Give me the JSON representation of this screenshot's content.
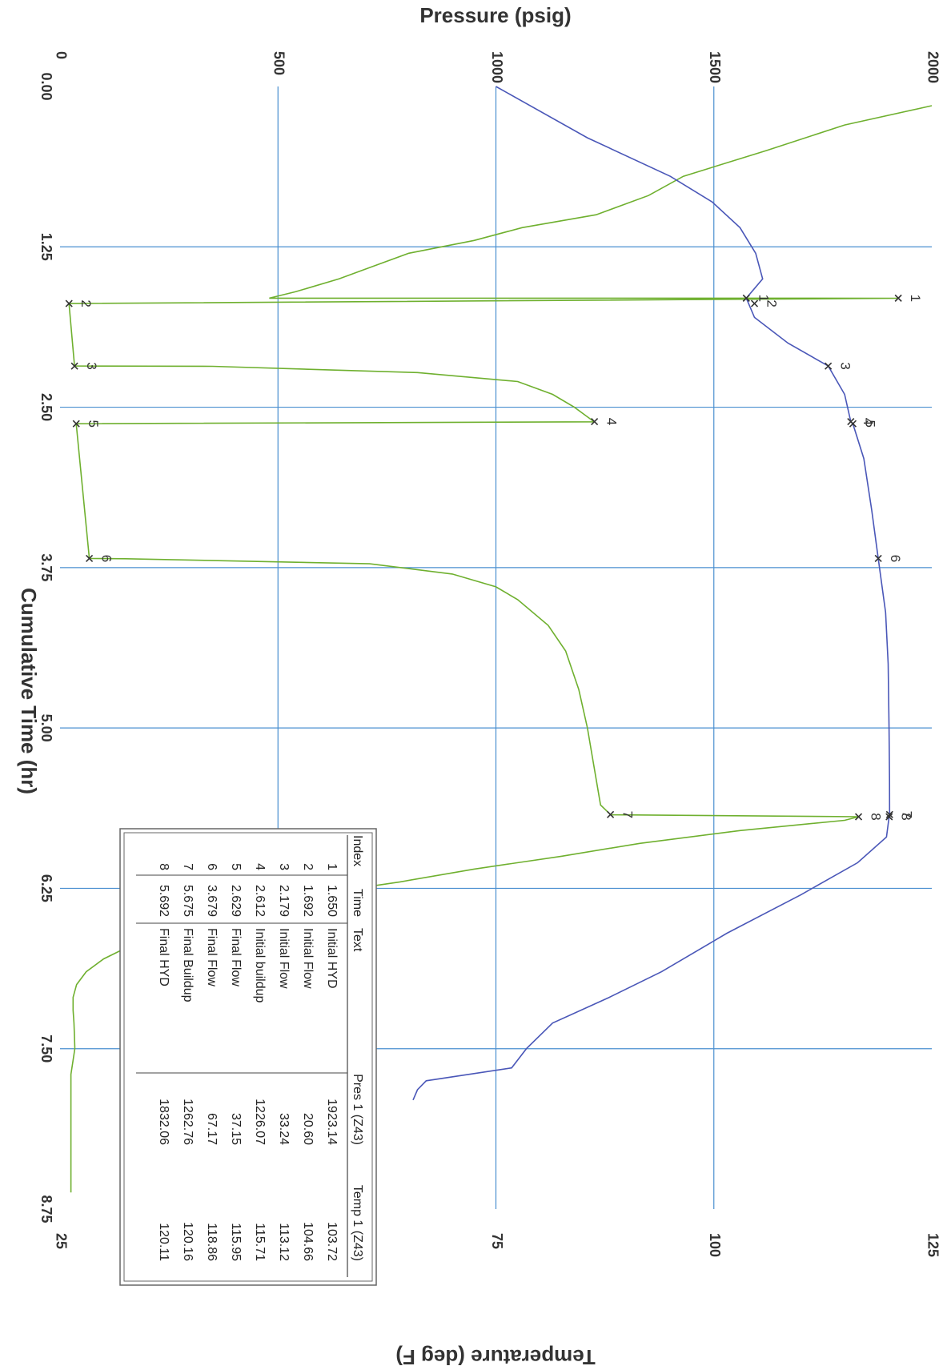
{
  "chart_data": {
    "type": "line",
    "orientation": "rotated-90-clockwise",
    "x_axis": {
      "label": "Cumulative Time (hr)",
      "range": [
        0,
        8.75
      ],
      "ticks": [
        "0.00",
        "1.25",
        "2.50",
        "3.75",
        "5.00",
        "6.25",
        "7.50",
        "8.75"
      ]
    },
    "y_left": {
      "label": "Pressure (psig)",
      "range": [
        0,
        2000
      ],
      "ticks": [
        "0",
        "500",
        "1000",
        "1500",
        "2000"
      ]
    },
    "y_right": {
      "label": "Temperature (deg F)",
      "range": [
        25,
        125
      ],
      "ticks": [
        "25",
        "50",
        "75",
        "100",
        "125"
      ]
    },
    "grid": true,
    "colors": {
      "pressure": "#6fb02f",
      "temperature": "#4a57b8",
      "grid": "#4a8fd0"
    },
    "series": [
      {
        "name": "Pres 1 (Z43)",
        "axis": "pressure",
        "x": [
          0.15,
          0.3,
          0.5,
          0.7,
          0.85,
          1.0,
          1.1,
          1.2,
          1.3,
          1.4,
          1.5,
          1.6,
          1.65,
          1.651,
          1.692,
          2.179,
          2.181,
          2.23,
          2.3,
          2.4,
          2.5,
          2.6,
          2.612,
          2.614,
          2.629,
          3.679,
          3.681,
          3.72,
          3.8,
          3.9,
          4.0,
          4.2,
          4.4,
          4.7,
          5.0,
          5.3,
          5.6,
          5.675,
          5.677,
          5.692,
          5.72,
          5.8,
          5.9,
          6.0,
          6.1,
          6.2,
          6.3,
          6.4,
          6.5,
          6.6,
          6.7,
          6.8,
          6.9,
          7.0,
          7.1,
          7.2,
          7.3,
          7.4,
          7.5,
          7.7,
          8.0,
          8.2,
          8.5,
          8.62
        ],
        "y": [
          2000,
          1800,
          1620,
          1430,
          1350,
          1230,
          1060,
          950,
          800,
          720,
          640,
          540,
          480,
          1923,
          20.6,
          33.24,
          350,
          820,
          1050,
          1130,
          1180,
          1220,
          1226.07,
          1226,
          37.15,
          67.17,
          150,
          710,
          900,
          1000,
          1050,
          1120,
          1160,
          1190,
          1210,
          1225,
          1240,
          1262.76,
          1262.76,
          1832.06,
          1800,
          1560,
          1330,
          1150,
          950,
          780,
          580,
          450,
          340,
          240,
          160,
          100,
          60,
          38,
          30,
          30,
          32,
          33,
          34,
          25,
          25,
          25,
          25,
          25
        ]
      },
      {
        "name": "Temp 1 (Z43)",
        "axis": "temperature",
        "x": [
          0.0,
          0.4,
          0.7,
          0.9,
          1.1,
          1.3,
          1.5,
          1.65,
          1.8,
          2.0,
          2.179,
          2.4,
          2.612,
          2.629,
          2.9,
          3.3,
          3.679,
          4.1,
          4.5,
          5.0,
          5.4,
          5.675,
          5.692,
          5.85,
          6.05,
          6.3,
          6.6,
          6.9,
          7.1,
          7.3,
          7.5,
          7.65,
          7.75,
          7.82,
          7.9
        ],
        "y": [
          75.0,
          85.5,
          95.0,
          99.8,
          103.0,
          104.8,
          105.6,
          103.72,
          104.66,
          108.5,
          113.12,
          115.0,
          115.71,
          115.95,
          117.2,
          118.1,
          118.86,
          119.7,
          120.0,
          120.1,
          120.15,
          120.16,
          120.11,
          119.8,
          116.5,
          110.0,
          101.5,
          94.0,
          88.0,
          81.5,
          78.5,
          76.8,
          67.0,
          66.0,
          65.5
        ]
      }
    ],
    "markers": {
      "headers": [
        "Index",
        "Time",
        "Text",
        "Pres 1 (Z43)",
        "Temp 1 (Z43)"
      ],
      "rows": [
        {
          "index": "1",
          "time": "1.650",
          "text": "Initial HYD",
          "pres": "1923.14",
          "temp": "103.72"
        },
        {
          "index": "2",
          "time": "1.692",
          "text": "Initial Flow",
          "pres": "20.60",
          "temp": "104.66"
        },
        {
          "index": "3",
          "time": "2.179",
          "text": "Initial Flow",
          "pres": "33.24",
          "temp": "113.12"
        },
        {
          "index": "4",
          "time": "2.612",
          "text": "Initial buildup",
          "pres": "1226.07",
          "temp": "115.71"
        },
        {
          "index": "5",
          "time": "2.629",
          "text": "Final Flow",
          "pres": "37.15",
          "temp": "115.95"
        },
        {
          "index": "6",
          "time": "3.679",
          "text": "Final Flow",
          "pres": "67.17",
          "temp": "118.86"
        },
        {
          "index": "7",
          "time": "5.675",
          "text": "Final Buildup",
          "pres": "1262.76",
          "temp": "120.16"
        },
        {
          "index": "8",
          "time": "5.692",
          "text": "Final HYD",
          "pres": "1832.06",
          "temp": "120.11"
        }
      ]
    }
  }
}
